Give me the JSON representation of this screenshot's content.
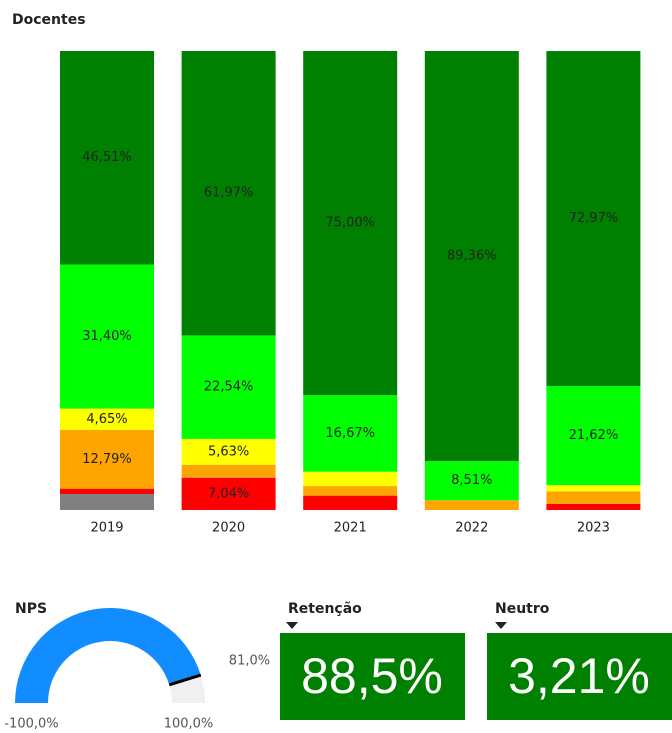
{
  "chart_data": [
    {
      "type": "bar",
      "stacked": true,
      "title": "Docentes",
      "categories": [
        "2019",
        "2020",
        "2021",
        "2022",
        "2023"
      ],
      "ylim": [
        0,
        100
      ],
      "series": [
        {
          "color": "#808080",
          "values": [
            3.49,
            0,
            0,
            0,
            0
          ],
          "value_labels": [
            null,
            null,
            null,
            null,
            null
          ]
        },
        {
          "color": "#ff0000",
          "values": [
            1.16,
            7.04,
            3.13,
            0,
            1.35
          ],
          "value_labels": [
            null,
            "7,04%",
            null,
            null,
            null
          ]
        },
        {
          "color": "#ffa500",
          "values": [
            12.79,
            2.82,
            2.08,
            2.13,
            2.7
          ],
          "value_labels": [
            "12,79%",
            null,
            null,
            null,
            null
          ]
        },
        {
          "color": "#ffff00",
          "values": [
            4.65,
            5.63,
            3.13,
            0,
            1.35
          ],
          "value_labels": [
            "4,65%",
            "5,63%",
            null,
            null,
            null
          ]
        },
        {
          "color": "#00ff00",
          "values": [
            31.4,
            22.54,
            16.67,
            8.51,
            21.62
          ],
          "value_labels": [
            "31,40%",
            "22,54%",
            "16,67%",
            "8,51%",
            "21,62%"
          ]
        },
        {
          "color": "#008000",
          "values": [
            46.51,
            61.97,
            75.0,
            89.36,
            72.97
          ],
          "value_labels": [
            "46,51%",
            "61,97%",
            "75,00%",
            "89,36%",
            "72,97%"
          ]
        }
      ]
    },
    {
      "type": "gauge",
      "title": "NPS",
      "value": 81,
      "value_label": "81,0%",
      "lim": [
        -100,
        100
      ],
      "ticks": [
        {
          "value": -100,
          "label": "-100,0%"
        },
        {
          "value": 100,
          "label": "100,0%"
        }
      ],
      "color": "#118dff",
      "track_color": "#f0f0f0"
    }
  ],
  "kpis": [
    {
      "title": "Retenção",
      "value": 88.5,
      "value_label": "88,5%",
      "color": "#008000"
    },
    {
      "title": "Neutro",
      "value": 3.21,
      "value_label": "3,21%",
      "color": "#008000"
    }
  ]
}
